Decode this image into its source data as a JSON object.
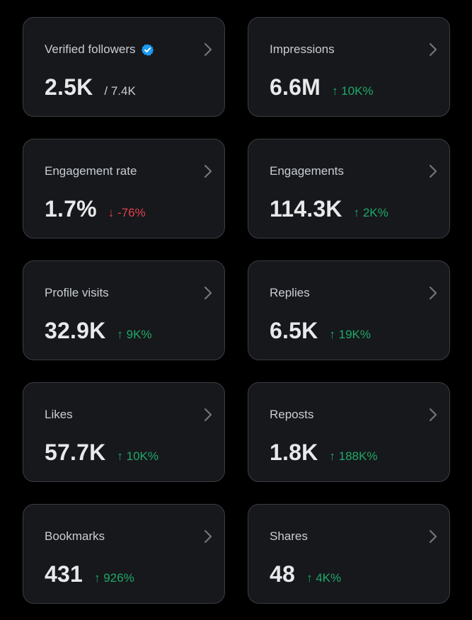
{
  "colors": {
    "background": "#000000",
    "card": "#16181c",
    "card_border": "#3a3d42",
    "text_primary": "#e7e9ea",
    "text_secondary": "#c9cdd1",
    "positive": "#1fa968",
    "negative": "#e0404b",
    "verified": "#1d9bf0"
  },
  "metrics": [
    {
      "label": "Verified followers",
      "value": "2.5K",
      "change": "/ 7.4K",
      "trend": "neutral",
      "icon": "verified-badge-icon"
    },
    {
      "label": "Impressions",
      "value": "6.6M",
      "change": "↑ 10K%",
      "trend": "up"
    },
    {
      "label": "Engagement rate",
      "value": "1.7%",
      "change": "↓ -76%",
      "trend": "down"
    },
    {
      "label": "Engagements",
      "value": "114.3K",
      "change": "↑ 2K%",
      "trend": "up"
    },
    {
      "label": "Profile visits",
      "value": "32.9K",
      "change": "↑ 9K%",
      "trend": "up"
    },
    {
      "label": "Replies",
      "value": "6.5K",
      "change": "↑ 19K%",
      "trend": "up"
    },
    {
      "label": "Likes",
      "value": "57.7K",
      "change": "↑ 10K%",
      "trend": "up"
    },
    {
      "label": "Reposts",
      "value": "1.8K",
      "change": "↑ 188K%",
      "trend": "up"
    },
    {
      "label": "Bookmarks",
      "value": "431",
      "change": "↑ 926%",
      "trend": "up"
    },
    {
      "label": "Shares",
      "value": "48",
      "change": "↑ 4K%",
      "trend": "up"
    }
  ]
}
